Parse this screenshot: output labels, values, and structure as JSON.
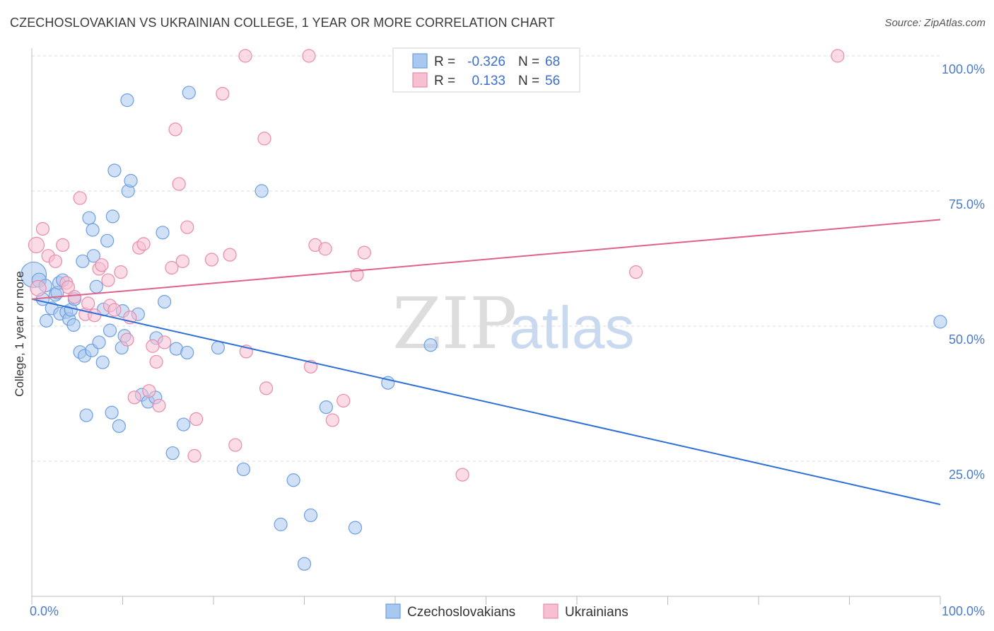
{
  "title": "CZECHOSLOVAKIAN VS UKRAINIAN COLLEGE, 1 YEAR OR MORE CORRELATION CHART",
  "source": "Source: ZipAtlas.com",
  "watermark": {
    "zip": "ZIP",
    "atlas": "atlas"
  },
  "colors": {
    "blue_fill": "#a9c8f0",
    "blue_stroke": "#6c9ee0",
    "blue_line": "#2f6fd6",
    "pink_fill": "#f7bfd2",
    "pink_stroke": "#e98aaa",
    "pink_line": "#e0618c",
    "grid": "#d8d8d8",
    "axis_text": "#4a7ac8"
  },
  "legend": {
    "r_label": "R =",
    "n_label": "N =",
    "rows": [
      {
        "r": "-0.326",
        "n": "68",
        "series": "blue"
      },
      {
        "r": "0.133",
        "n": "56",
        "series": "pink"
      }
    ]
  },
  "bottom_legend": [
    {
      "label": "Czechoslovakians",
      "series": "blue"
    },
    {
      "label": "Ukrainians",
      "series": "pink"
    }
  ],
  "chart_data": {
    "type": "scatter",
    "title": "CZECHOSLOVAKIAN VS UKRAINIAN COLLEGE, 1 YEAR OR MORE CORRELATION CHART",
    "xlabel": "",
    "ylabel": "College, 1 year or more",
    "xlim": [
      0,
      100
    ],
    "ylim": [
      0,
      100
    ],
    "x_ticks": [
      {
        "value": 0,
        "label": "0.0%"
      },
      {
        "value": 100,
        "label": "100.0%"
      }
    ],
    "y_ticks": [
      {
        "value": 25,
        "label": "25.0%"
      },
      {
        "value": 50,
        "label": "50.0%"
      },
      {
        "value": 75,
        "label": "75.0%"
      },
      {
        "value": 100,
        "label": "100.0%"
      }
    ],
    "grid": true,
    "legend_position": "top-center",
    "series": [
      {
        "name": "Czechoslovakians",
        "color": "#a9c8f0",
        "r": -0.326,
        "n": 68,
        "trend": {
          "x0": 0,
          "y0": 55.0,
          "x1": 100,
          "y1": 17.0
        },
        "points": [
          [
            0.2,
            59.5,
            18
          ],
          [
            0.8,
            58.5,
            10
          ],
          [
            1.2,
            55.0,
            9
          ],
          [
            1.5,
            57.5,
            9
          ],
          [
            1.6,
            51.0,
            9
          ],
          [
            2.2,
            53.3,
            9
          ],
          [
            2.6,
            55.8,
            9
          ],
          [
            2.8,
            56.2,
            9
          ],
          [
            3.0,
            58.0,
            9
          ],
          [
            3.1,
            52.3,
            9
          ],
          [
            3.4,
            58.5,
            9
          ],
          [
            3.8,
            52.6,
            9
          ],
          [
            4.1,
            51.3,
            9
          ],
          [
            4.3,
            53.0,
            9
          ],
          [
            4.6,
            50.2,
            9
          ],
          [
            4.7,
            55.0,
            9
          ],
          [
            5.3,
            45.2,
            9
          ],
          [
            5.6,
            62.0,
            9
          ],
          [
            5.8,
            44.5,
            9
          ],
          [
            6.0,
            33.5,
            9
          ],
          [
            6.3,
            70.0,
            9
          ],
          [
            6.6,
            45.5,
            9
          ],
          [
            6.7,
            67.8,
            9
          ],
          [
            6.8,
            63.0,
            9
          ],
          [
            7.1,
            57.3,
            9
          ],
          [
            7.4,
            47.0,
            9
          ],
          [
            7.8,
            43.3,
            9
          ],
          [
            7.9,
            53.1,
            9
          ],
          [
            8.3,
            65.8,
            9
          ],
          [
            8.6,
            49.2,
            9
          ],
          [
            8.8,
            34.0,
            9
          ],
          [
            8.9,
            70.3,
            9
          ],
          [
            9.1,
            78.8,
            9
          ],
          [
            9.6,
            31.5,
            9
          ],
          [
            9.9,
            46.0,
            9
          ],
          [
            10.0,
            52.8,
            9
          ],
          [
            10.2,
            48.2,
            9
          ],
          [
            10.5,
            91.8,
            9
          ],
          [
            10.6,
            75.0,
            9
          ],
          [
            10.9,
            76.9,
            9
          ],
          [
            11.7,
            52.2,
            9
          ],
          [
            12.1,
            37.3,
            9
          ],
          [
            12.8,
            36.0,
            9
          ],
          [
            13.6,
            36.8,
            9
          ],
          [
            13.7,
            47.8,
            9
          ],
          [
            14.4,
            67.3,
            9
          ],
          [
            14.6,
            54.5,
            9
          ],
          [
            15.5,
            26.5,
            9
          ],
          [
            15.9,
            45.8,
            9
          ],
          [
            16.7,
            31.8,
            9
          ],
          [
            17.1,
            45.1,
            9
          ],
          [
            17.3,
            93.2,
            9
          ],
          [
            20.5,
            46.0,
            9
          ],
          [
            23.3,
            23.5,
            9
          ],
          [
            25.3,
            75.0,
            9
          ],
          [
            27.4,
            13.3,
            9
          ],
          [
            28.8,
            21.5,
            9
          ],
          [
            30.0,
            6.0,
            9
          ],
          [
            30.7,
            15.0,
            9
          ],
          [
            32.4,
            35.0,
            9
          ],
          [
            35.6,
            12.7,
            9
          ],
          [
            39.2,
            39.5,
            9
          ],
          [
            43.9,
            46.5,
            9
          ],
          [
            100.0,
            50.8,
            9
          ]
        ]
      },
      {
        "name": "Ukrainians",
        "color": "#f7bfd2",
        "r": 0.133,
        "n": 56,
        "trend": {
          "x0": 0,
          "y0": 55.0,
          "x1": 100,
          "y1": 69.7
        },
        "points": [
          [
            0.5,
            65.0,
            11
          ],
          [
            0.7,
            57.0,
            11
          ],
          [
            1.2,
            68.0,
            9
          ],
          [
            1.8,
            63.0,
            9
          ],
          [
            2.6,
            62.0,
            9
          ],
          [
            3.4,
            65.0,
            9
          ],
          [
            3.8,
            58.0,
            9
          ],
          [
            4.0,
            57.2,
            9
          ],
          [
            4.7,
            55.4,
            9
          ],
          [
            5.3,
            73.7,
            9
          ],
          [
            5.9,
            52.2,
            9
          ],
          [
            6.2,
            54.2,
            9
          ],
          [
            6.9,
            52.0,
            9
          ],
          [
            7.4,
            60.6,
            9
          ],
          [
            7.7,
            61.3,
            9
          ],
          [
            8.4,
            58.5,
            9
          ],
          [
            8.6,
            53.8,
            9
          ],
          [
            9.1,
            53.0,
            9
          ],
          [
            9.8,
            60.0,
            9
          ],
          [
            10.5,
            47.5,
            9
          ],
          [
            10.8,
            51.6,
            9
          ],
          [
            11.3,
            36.8,
            9
          ],
          [
            11.8,
            64.5,
            9
          ],
          [
            12.3,
            65.2,
            9
          ],
          [
            12.9,
            38.0,
            9
          ],
          [
            13.3,
            46.3,
            9
          ],
          [
            13.7,
            43.4,
            9
          ],
          [
            14.0,
            35.3,
            9
          ],
          [
            14.6,
            47.0,
            9
          ],
          [
            15.4,
            60.8,
            9
          ],
          [
            15.8,
            86.4,
            9
          ],
          [
            16.2,
            76.3,
            9
          ],
          [
            16.6,
            62.0,
            9
          ],
          [
            17.1,
            68.3,
            9
          ],
          [
            17.9,
            26.0,
            9
          ],
          [
            18.1,
            32.8,
            9
          ],
          [
            19.8,
            62.3,
            9
          ],
          [
            21.0,
            93.0,
            9
          ],
          [
            21.8,
            63.2,
            9
          ],
          [
            22.4,
            28.0,
            9
          ],
          [
            23.5,
            100.0,
            9
          ],
          [
            23.6,
            45.3,
            9
          ],
          [
            25.6,
            84.7,
            9
          ],
          [
            25.8,
            38.5,
            9
          ],
          [
            30.5,
            100.0,
            9
          ],
          [
            30.7,
            42.5,
            9
          ],
          [
            31.2,
            65.0,
            9
          ],
          [
            32.3,
            64.3,
            9
          ],
          [
            33.1,
            32.6,
            9
          ],
          [
            34.3,
            36.2,
            9
          ],
          [
            35.8,
            59.5,
            9
          ],
          [
            36.6,
            63.6,
            9
          ],
          [
            47.4,
            22.5,
            9
          ],
          [
            66.5,
            60.0,
            9
          ],
          [
            88.7,
            100.0,
            9
          ]
        ]
      }
    ]
  }
}
